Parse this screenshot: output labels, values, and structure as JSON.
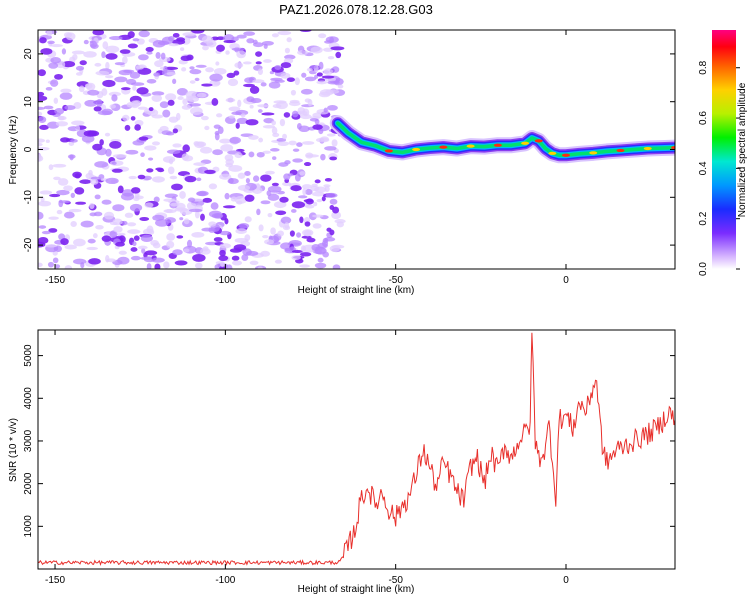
{
  "title": "PAZ1.2026.078.12.28.G03",
  "colors": {
    "snr_line": "#e8302c",
    "scatter": "#8a3cf0",
    "axis": "#000000"
  },
  "chart_data": [
    {
      "type": "heatmap",
      "xlabel": "Height of straight line (km)",
      "ylabel": "Frequency (Hz)",
      "xlim": [
        -155,
        32
      ],
      "ylim": [
        -25,
        25
      ],
      "xticks": [
        -150,
        -100,
        -50,
        0
      ],
      "yticks": [
        -20,
        -10,
        0,
        10,
        20
      ],
      "noise_region_x": [
        -155,
        -66
      ],
      "ridge": {
        "x": [
          -67,
          -64,
          -60,
          -56,
          -52,
          -48,
          -44,
          -40,
          -36,
          -32,
          -28,
          -24,
          -20,
          -16,
          -12,
          -10,
          -8,
          -6,
          -4,
          -2,
          0,
          4,
          8,
          12,
          16,
          20,
          24,
          28,
          32
        ],
        "y": [
          5.5,
          3.5,
          1.5,
          0.8,
          -0.3,
          -0.6,
          0.0,
          0.3,
          0.5,
          0.2,
          0.7,
          0.6,
          0.9,
          0.9,
          1.3,
          2.4,
          1.8,
          0.2,
          -0.8,
          -1.2,
          -1.2,
          -0.9,
          -0.7,
          -0.4,
          -0.2,
          0.0,
          0.2,
          0.3,
          0.4
        ]
      },
      "colorbar": {
        "label": "Normalized spectral amplitude",
        "ticks": [
          0.0,
          0.2,
          0.4,
          0.6,
          0.8
        ],
        "range": [
          0,
          0.95
        ]
      }
    },
    {
      "type": "line",
      "xlabel": "Height of straight line (km)",
      "ylabel": "SNR (10 * v/v)",
      "xlim": [
        -155,
        32
      ],
      "ylim": [
        0,
        5600
      ],
      "xticks": [
        -150,
        -100,
        -50,
        0
      ],
      "yticks": [
        1000,
        2000,
        3000,
        4000,
        5000
      ],
      "series": [
        {
          "name": "SNR",
          "x": [
            -155,
            -70,
            -66,
            -62,
            -60,
            -58,
            -56,
            -54,
            -52,
            -50,
            -48,
            -46,
            -44,
            -42,
            -40,
            -38,
            -36,
            -34,
            -32,
            -30,
            -28,
            -26,
            -24,
            -22,
            -20,
            -18,
            -16,
            -14,
            -12,
            -10.5,
            -10,
            -9,
            -8,
            -6,
            -5,
            -4,
            -3,
            -2,
            0,
            2,
            4,
            6,
            8,
            9,
            10,
            11,
            12,
            15,
            20,
            25,
            28,
            30,
            32
          ],
          "y": [
            150,
            150,
            160,
            900,
            1700,
            1900,
            1500,
            1800,
            1400,
            1200,
            1500,
            1700,
            2200,
            2800,
            2400,
            1900,
            2500,
            2200,
            1800,
            1600,
            2400,
            2600,
            2000,
            2700,
            2300,
            2900,
            2600,
            3000,
            3200,
            3400,
            5600,
            3000,
            2600,
            2800,
            3400,
            2600,
            1700,
            3500,
            3600,
            3300,
            3900,
            3700,
            4300,
            4400,
            3400,
            2700,
            2500,
            2800,
            3000,
            3200,
            3400,
            3700,
            3500
          ]
        }
      ]
    }
  ]
}
